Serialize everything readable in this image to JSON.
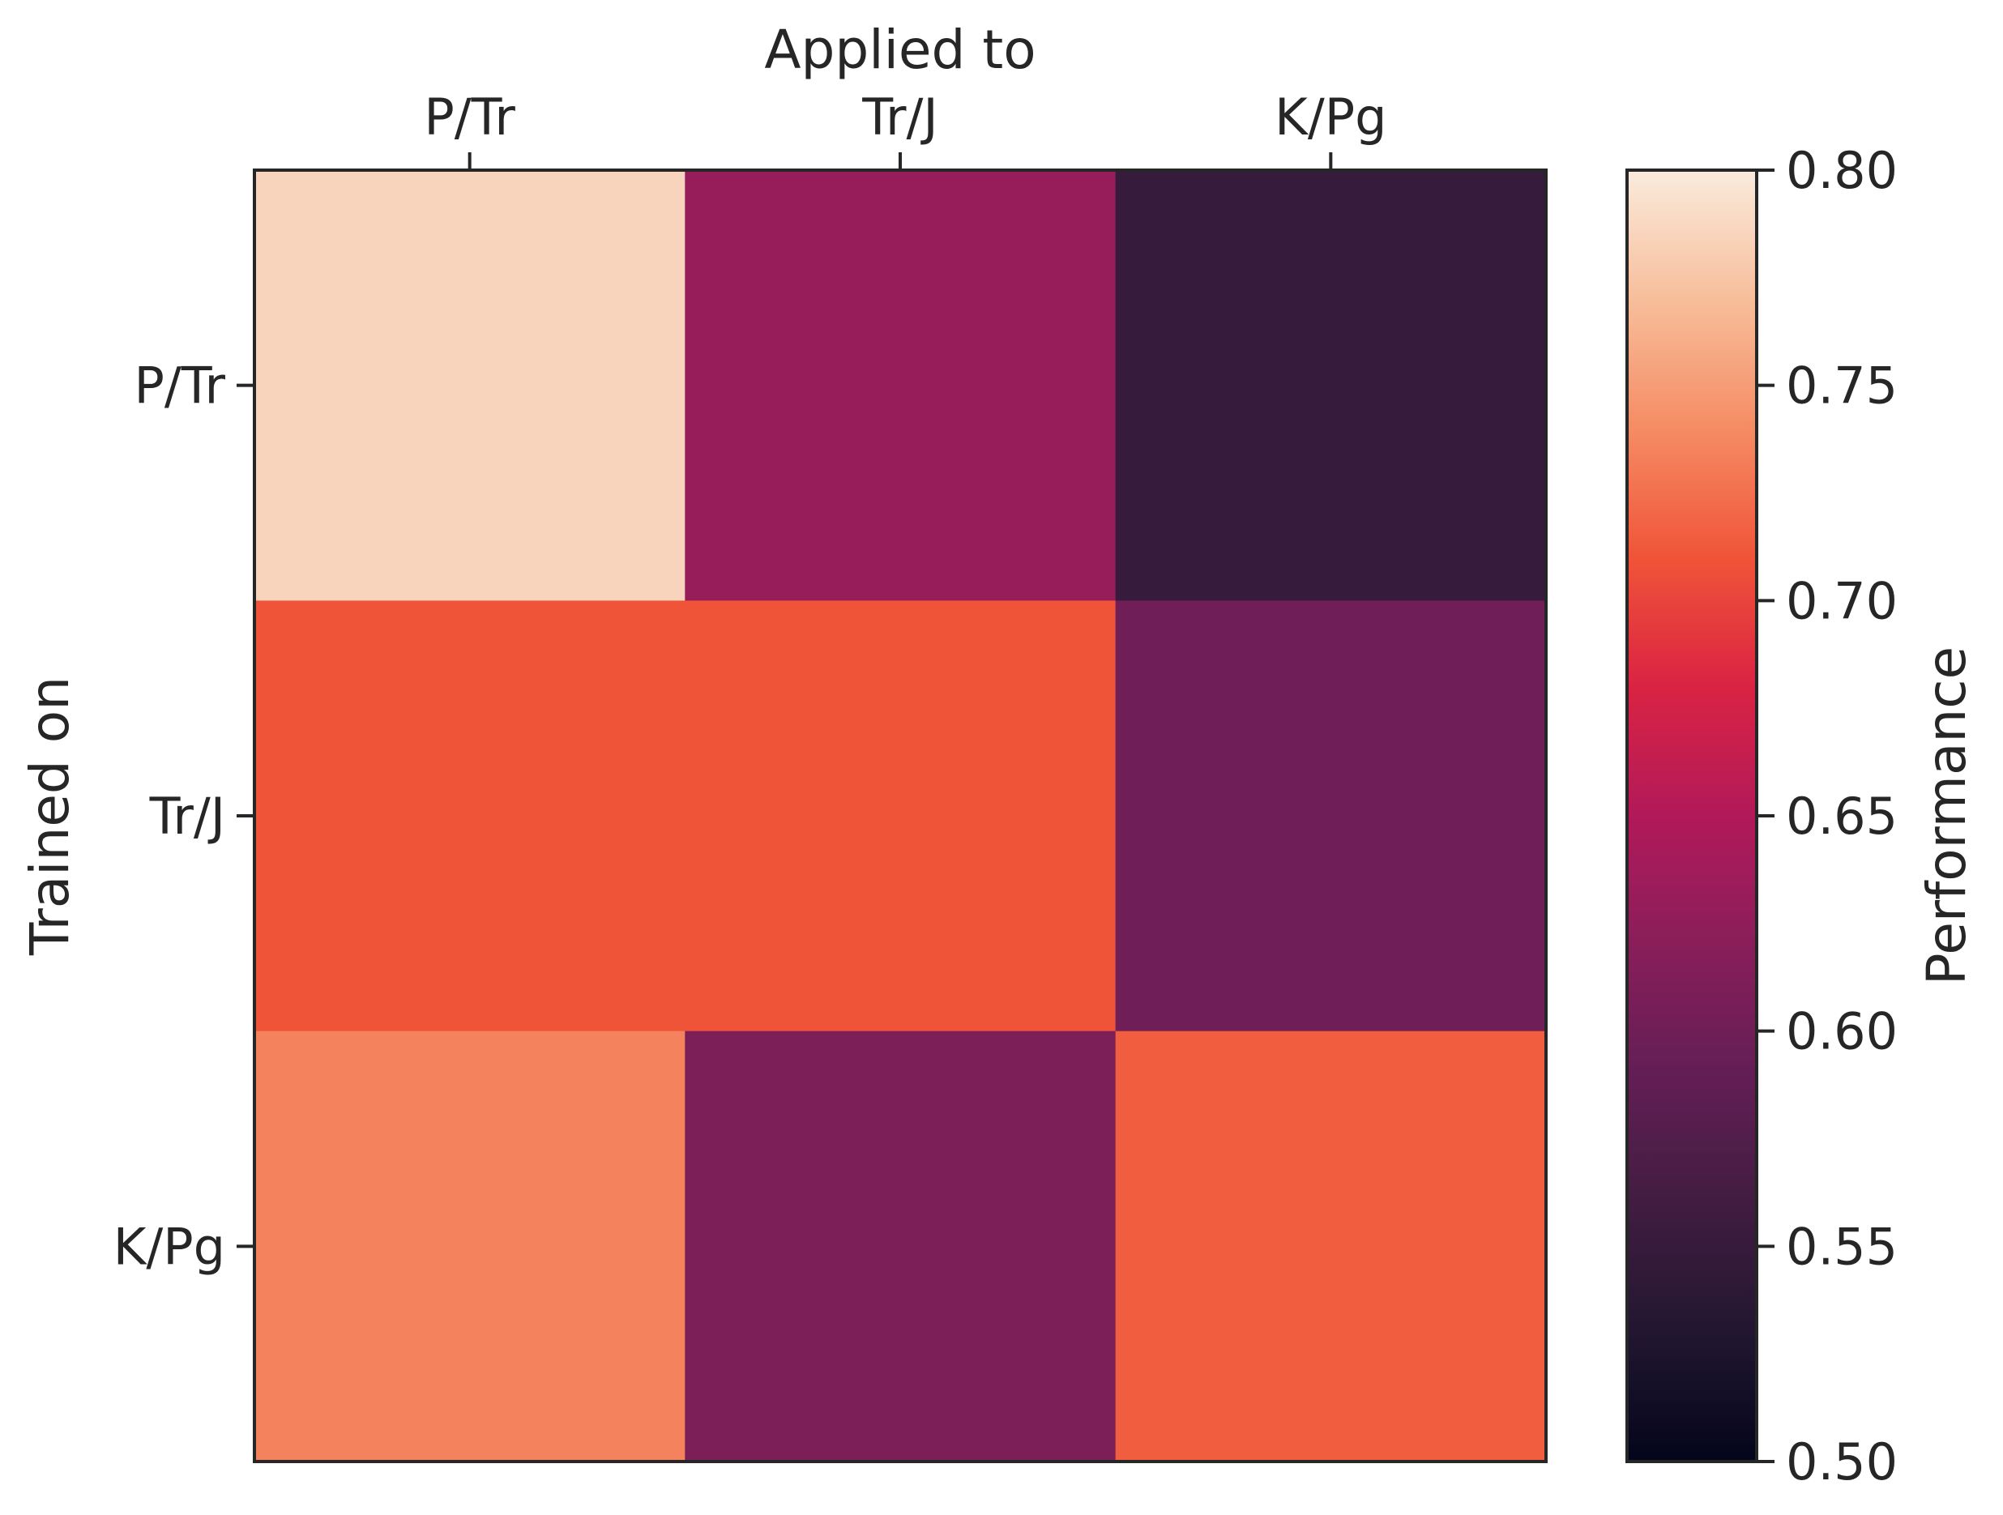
{
  "chart_data": {
    "type": "heatmap",
    "x_axis": {
      "label": "Applied to",
      "categories": [
        "P/Tr",
        "Tr/J",
        "K/Pg"
      ],
      "position": "top"
    },
    "y_axis": {
      "label": "Trained on",
      "categories": [
        "P/Tr",
        "Tr/J",
        "K/Pg"
      ]
    },
    "values": [
      [
        0.785,
        0.63,
        0.55
      ],
      [
        0.71,
        0.71,
        0.6
      ],
      [
        0.735,
        0.61,
        0.715
      ]
    ],
    "colorbar": {
      "label": "Performance",
      "range": [
        0.5,
        0.8
      ],
      "ticks": [
        "0.50",
        "0.55",
        "0.60",
        "0.65",
        "0.70",
        "0.75",
        "0.80"
      ],
      "colormap": "rocket"
    },
    "grid": false
  }
}
